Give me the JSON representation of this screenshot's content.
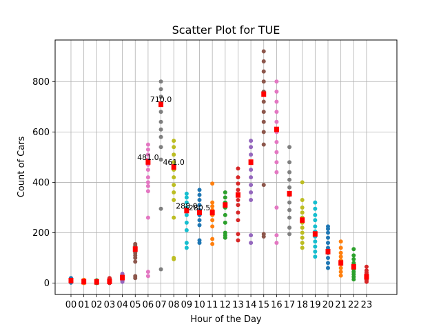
{
  "chart_data": {
    "type": "scatter",
    "title": "Scatter Plot for TUE",
    "xlabel": "Hour of the Day",
    "ylabel": "Count of Cars",
    "categories": [
      "00",
      "01",
      "02",
      "03",
      "04",
      "05",
      "06",
      "07",
      "08",
      "09",
      "10",
      "11",
      "12",
      "13",
      "14",
      "15",
      "16",
      "17",
      "18",
      "19",
      "20",
      "21",
      "22",
      "23"
    ],
    "ylim": [
      -45,
      965
    ],
    "yticks": [
      0,
      200,
      400,
      600,
      800
    ],
    "grid": true,
    "colors": [
      "#1f77b4",
      "#ff7f0e",
      "#2ca02c",
      "#d62728",
      "#9467bd",
      "#8c564b",
      "#e377c2",
      "#7f7f7f",
      "#bcbd22",
      "#17becf",
      "#1f77b4",
      "#ff7f0e",
      "#2ca02c",
      "#d62728",
      "#9467bd",
      "#8c564b",
      "#e377c2",
      "#7f7f7f",
      "#bcbd22",
      "#17becf",
      "#1f77b4",
      "#ff7f0e",
      "#2ca02c",
      "#d62728"
    ],
    "median_color": "#ff0000",
    "series": [
      {
        "hour": "00",
        "values": [
          2,
          4,
          6,
          8,
          10,
          12,
          14,
          16,
          18,
          20
        ],
        "median": 10
      },
      {
        "hour": "01",
        "values": [
          0,
          2,
          4,
          5,
          7,
          9,
          11,
          13
        ],
        "median": 6
      },
      {
        "hour": "02",
        "values": [
          0,
          2,
          3,
          5,
          7,
          9,
          11
        ],
        "median": 5
      },
      {
        "hour": "03",
        "values": [
          0,
          3,
          5,
          7,
          9,
          12,
          15,
          18,
          20
        ],
        "median": 7
      },
      {
        "hour": "04",
        "values": [
          5,
          9,
          13,
          17,
          21,
          25,
          29,
          33,
          37
        ],
        "median": 22
      },
      {
        "hour": "05",
        "values": [
          20,
          28,
          85,
          100,
          110,
          120,
          130,
          140,
          150,
          155
        ],
        "median": 135
      },
      {
        "hour": "06",
        "values": [
          28,
          45,
          260,
          365,
          385,
          400,
          420,
          450,
          470,
          490,
          510,
          530,
          550
        ],
        "median": 481
      },
      {
        "hour": "07",
        "values": [
          55,
          295,
          490,
          540,
          580,
          610,
          640,
          680,
          710,
          740,
          770,
          800
        ],
        "median": 710
      },
      {
        "hour": "08",
        "values": [
          95,
          100,
          260,
          330,
          360,
          390,
          420,
          450,
          480,
          510,
          540,
          565
        ],
        "median": 461
      },
      {
        "hour": "09",
        "values": [
          140,
          160,
          210,
          240,
          270,
          300,
          320,
          340,
          355
        ],
        "median": 288
      },
      {
        "hour": "10",
        "values": [
          160,
          170,
          230,
          250,
          270,
          290,
          310,
          330,
          350,
          370
        ],
        "median": 280.5
      },
      {
        "hour": "11",
        "values": [
          155,
          175,
          225,
          250,
          270,
          290,
          305,
          320,
          395
        ],
        "median": 280
      },
      {
        "hour": "12",
        "values": [
          180,
          190,
          200,
          240,
          270,
          300,
          320,
          340,
          360
        ],
        "median": 310
      },
      {
        "hour": "13",
        "values": [
          170,
          195,
          250,
          280,
          310,
          330,
          350,
          370,
          395,
          420,
          455
        ],
        "median": 350
      },
      {
        "hour": "14",
        "values": [
          160,
          190,
          330,
          360,
          390,
          420,
          450,
          480,
          510,
          540,
          565
        ],
        "median": 480
      },
      {
        "hour": "15",
        "values": [
          185,
          195,
          390,
          550,
          600,
          640,
          680,
          720,
          760,
          800,
          840,
          880,
          920
        ],
        "median": 750
      },
      {
        "hour": "16",
        "values": [
          160,
          190,
          300,
          440,
          480,
          520,
          560,
          600,
          640,
          680,
          720,
          760,
          800
        ],
        "median": 610
      },
      {
        "hour": "17",
        "values": [
          195,
          220,
          260,
          290,
          320,
          350,
          380,
          410,
          440,
          480,
          540
        ],
        "median": 355
      },
      {
        "hour": "18",
        "values": [
          140,
          160,
          180,
          200,
          220,
          240,
          260,
          280,
          300,
          330,
          400
        ],
        "median": 250
      },
      {
        "hour": "19",
        "values": [
          105,
          125,
          145,
          165,
          185,
          205,
          225,
          250,
          270,
          295,
          320
        ],
        "median": 195
      },
      {
        "hour": "20",
        "values": [
          60,
          80,
          100,
          120,
          140,
          160,
          180,
          200,
          215,
          225
        ],
        "median": 125
      },
      {
        "hour": "21",
        "values": [
          30,
          45,
          60,
          75,
          90,
          105,
          120,
          140,
          165
        ],
        "median": 80
      },
      {
        "hour": "22",
        "values": [
          15,
          25,
          35,
          45,
          55,
          65,
          80,
          95,
          110,
          135
        ],
        "median": 65
      },
      {
        "hour": "23",
        "values": [
          5,
          12,
          18,
          24,
          30,
          36,
          42,
          50,
          65
        ],
        "median": 25
      }
    ],
    "annotations": [
      {
        "hour": "06",
        "value": 481,
        "text": "481.0"
      },
      {
        "hour": "07",
        "value": 710,
        "text": "710.0"
      },
      {
        "hour": "08",
        "value": 461,
        "text": "461.0"
      },
      {
        "hour": "09",
        "value": 288,
        "text": "288.0"
      },
      {
        "hour": "10",
        "value": 280.5,
        "text": "280.5"
      }
    ]
  }
}
